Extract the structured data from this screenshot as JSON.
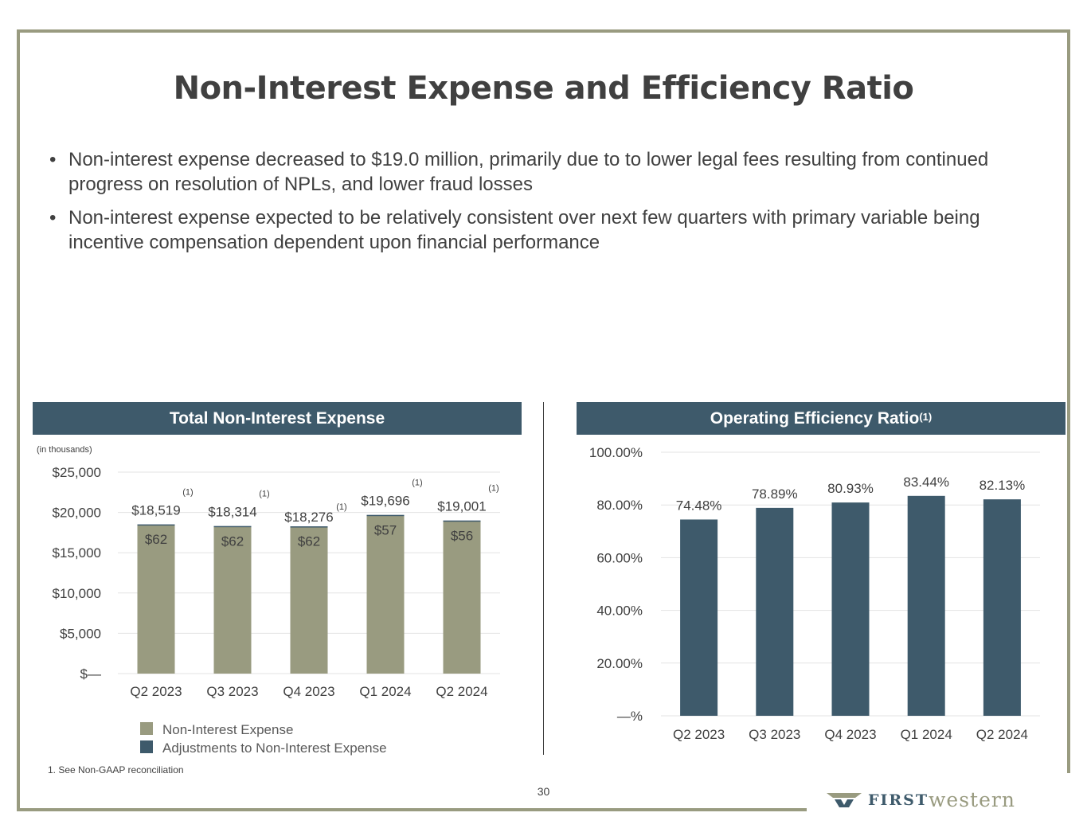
{
  "title": "Non-Interest Expense and Efficiency Ratio",
  "bullets": [
    "Non-interest expense decreased to $19.0 million, primarily due to to lower legal fees resulting from continued progress on resolution of NPLs, and lower fraud losses",
    "Non-interest expense expected to be relatively consistent over next few quarters with primary variable being incentive compensation dependent upon financial performance"
  ],
  "left_panel": {
    "header": "Total Non-Interest Expense",
    "units": "(in thousands)"
  },
  "right_panel": {
    "header": "Operating Efficiency Ratio",
    "header_sup": "(1)"
  },
  "footnote": "1.  See Non-GAAP reconciliation",
  "page_number": "30",
  "logo": {
    "first": "FIRST",
    "western": "western"
  },
  "colors": {
    "olive": "#999b80",
    "navy": "#3e5a6b",
    "text": "#404040",
    "grid": "#e3e3e3"
  },
  "chart_data": [
    {
      "type": "bar",
      "stacked": true,
      "title": "Total Non-Interest Expense",
      "categories": [
        "Q2 2023",
        "Q3 2023",
        "Q4 2023",
        "Q1 2024",
        "Q2 2024"
      ],
      "series": [
        {
          "name": "Non-Interest Expense",
          "values": [
            18457,
            18252,
            18214,
            19639,
            18945
          ],
          "color": "#999b80"
        },
        {
          "name": "Adjustments to Non-Interest Expense",
          "values": [
            62,
            62,
            62,
            57,
            56
          ],
          "color": "#3e5a6b"
        }
      ],
      "total_labels": [
        "$18,519",
        "$18,314",
        "$18,276",
        "$19,696",
        "$19,001"
      ],
      "adjustment_labels": [
        "$62",
        "$62",
        "$62",
        "$57",
        "$56"
      ],
      "footnote_marks": [
        "(1)",
        "(1)",
        "(1)",
        "(1)",
        "(1)"
      ],
      "y_ticks": [
        0,
        5000,
        10000,
        15000,
        20000,
        25000
      ],
      "y_tick_labels": [
        "$—",
        "$5,000",
        "$10,000",
        "$15,000",
        "$20,000",
        "$25,000"
      ],
      "ylim": [
        0,
        25000
      ],
      "grid": true,
      "legend_position": "bottom-left"
    },
    {
      "type": "bar",
      "title": "Operating Efficiency Ratio",
      "categories": [
        "Q2 2023",
        "Q3 2023",
        "Q4 2023",
        "Q1 2024",
        "Q2 2024"
      ],
      "values": [
        74.48,
        78.89,
        80.93,
        83.44,
        82.13
      ],
      "value_labels": [
        "74.48%",
        "78.89%",
        "80.93%",
        "83.44%",
        "82.13%"
      ],
      "color": "#3e5a6b",
      "y_ticks": [
        0,
        20,
        40,
        60,
        80,
        100
      ],
      "y_tick_labels": [
        "—%",
        "20.00%",
        "40.00%",
        "60.00%",
        "80.00%",
        "100.00%"
      ],
      "ylim": [
        0,
        100
      ],
      "grid": true
    }
  ]
}
